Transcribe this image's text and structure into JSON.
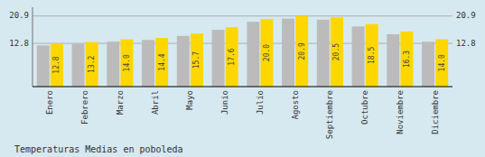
{
  "chart_data": {
    "type": "bar",
    "title": "Temperaturas Medias en poboleda",
    "categories": [
      "Enero",
      "Febrero",
      "Marzo",
      "Abril",
      "Mayo",
      "Junio",
      "Julio",
      "Agosto",
      "Septiembre",
      "Octubre",
      "Noviembre",
      "Diciembre"
    ],
    "series": [
      {
        "color": "#BBBBBB",
        "values": [
          12.2,
          12.6,
          13.3,
          13.8,
          15.0,
          16.8,
          19.2,
          20.1,
          19.8,
          17.8,
          15.5,
          13.3
        ]
      },
      {
        "color": "#FFD700",
        "values": [
          12.8,
          13.2,
          14.0,
          14.4,
          15.7,
          17.6,
          20.0,
          20.9,
          20.5,
          18.5,
          16.3,
          14.0
        ],
        "value_labels": [
          "12.8",
          "13.2",
          "14.0",
          "14.4",
          "15.7",
          "17.6",
          "20.0",
          "20.9",
          "20.5",
          "18.5",
          "16.3",
          "14.0"
        ],
        "data_labels": true
      }
    ],
    "ylim": [
      0,
      23.5
    ],
    "yticks": [
      12.8,
      20.9
    ],
    "grid": true
  }
}
